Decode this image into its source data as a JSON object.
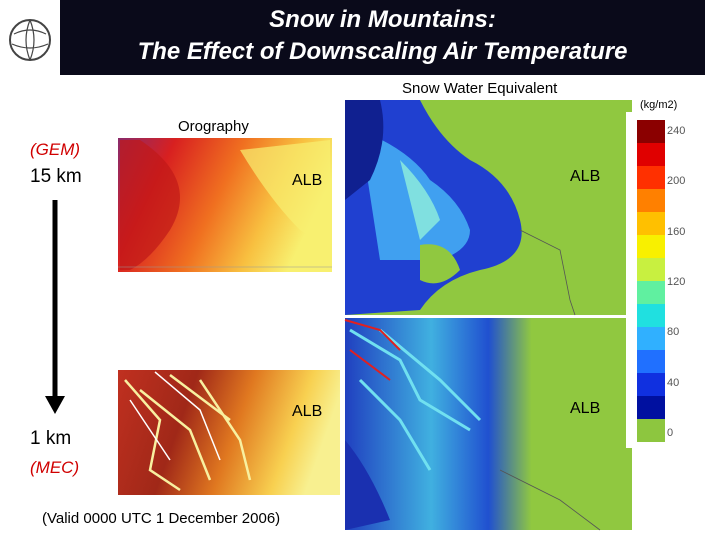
{
  "header": {
    "title_line1": "Snow in Mountains:",
    "title_line2": "The Effect of Downscaling Air Temperature"
  },
  "labels": {
    "swe": "Snow Water Equivalent",
    "units": "(kg/m2)",
    "orography": "Orography",
    "gem": "(GEM)",
    "res_top": "15 km",
    "res_bottom": "1 km",
    "mec": "(MEC)",
    "valid": "(Valid 0000 UTC 1 December 2006)"
  },
  "panels": [
    {
      "label": "ALB"
    },
    {
      "label": "ALB"
    },
    {
      "label": "ALB"
    },
    {
      "label": "ALB"
    }
  ],
  "colorbar": {
    "ticks": [
      "240",
      "200",
      "160",
      "120",
      "80",
      "40",
      "0"
    ]
  }
}
